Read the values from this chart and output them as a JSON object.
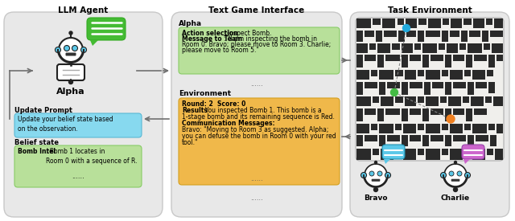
{
  "title_llm": "LLM Agent",
  "title_tgi": "Text Game Interface",
  "title_env": "Task Environment",
  "agent_name": "Alpha",
  "bravo_name": "Bravo",
  "charlie_name": "Charlie",
  "update_prompt_label": "Update Prompt",
  "belief_state_label": "Belief state",
  "alpha_label": "Alpha",
  "environment_label": "Environment",
  "update_prompt_text": "Update your belief state based\non the observation.",
  "belief_state_bold": "Bomb Intel",
  "belief_state_rest": ": Bomb 1 locates in\nRoom 0 with a sequence of R.",
  "dots": "......",
  "action_bold": "Action selection",
  "action_rest": ": Inspect Bomb.",
  "msg_bold": "Message to Team",
  "msg_rest": ": \"I am inspecting the bomb in\nRoom 0. Bravo; please move to Room 3. Charlie;\nplease move to Room 5.\"",
  "round_bold": "Round: 2  Score: 0",
  "results_bold": "Results",
  "results_rest": ": You inspected Bomb 1. This bomb is a\n1-stage bomb and its remaining sequence is Red.",
  "comm_bold": "Communication Messages:",
  "comm_rest": "Bravo: \"Moving to Room 3 as suggested. Alpha;\nyou can defuse the bomb in Room 0 with your red\ntool.\"",
  "panel_bg": "#e8e8e8",
  "green_alpha_box": "#b8e09a",
  "orange_box": "#f0b84a",
  "blue_box": "#87d9ef",
  "light_green_box": "#b8e09a",
  "white": "#ffffff",
  "arrow_color": "#707070",
  "bravo_bubble": "#5bc8e8",
  "charlie_bubble": "#cc66cc",
  "speech_green": "#44bb33"
}
